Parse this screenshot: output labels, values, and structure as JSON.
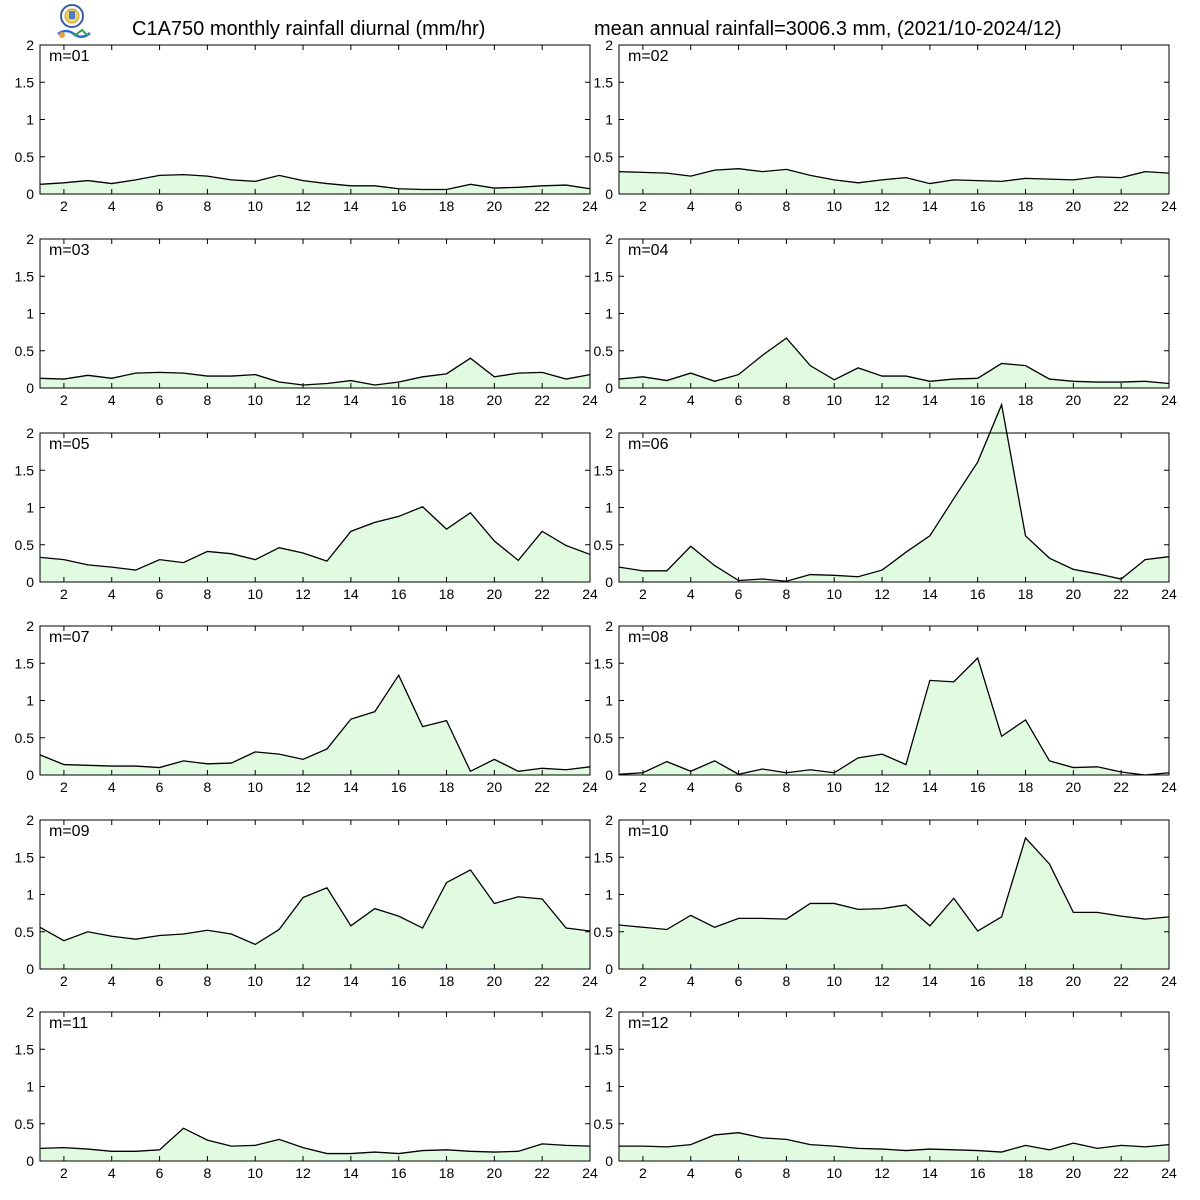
{
  "header": {
    "title_left": "C1A750 monthly rainfall diurnal (mm/hr)",
    "title_right": "mean annual rainfall=3006.3 mm, (2021/10-2024/12)",
    "logo_icon": "lab-logo-icon"
  },
  "style": {
    "fill_color": "#e0fbe0",
    "line_color": "#000000"
  },
  "chart_data": [
    {
      "type": "area",
      "label": "m=01",
      "xlim": [
        1,
        24
      ],
      "ylim": [
        0,
        2
      ],
      "xticks": [
        2,
        4,
        6,
        8,
        10,
        12,
        14,
        16,
        18,
        20,
        22,
        24
      ],
      "yticks": [
        0,
        0.5,
        1,
        1.5,
        2
      ],
      "x": [
        1,
        2,
        3,
        4,
        5,
        6,
        7,
        8,
        9,
        10,
        11,
        12,
        13,
        14,
        15,
        16,
        17,
        18,
        19,
        20,
        21,
        22,
        23,
        24
      ],
      "values": [
        0.13,
        0.15,
        0.18,
        0.14,
        0.19,
        0.25,
        0.26,
        0.24,
        0.19,
        0.17,
        0.25,
        0.18,
        0.14,
        0.11,
        0.11,
        0.07,
        0.06,
        0.06,
        0.13,
        0.08,
        0.09,
        0.11,
        0.12,
        0.07
      ]
    },
    {
      "type": "area",
      "label": "m=02",
      "xlim": [
        1,
        24
      ],
      "ylim": [
        0,
        2
      ],
      "xticks": [
        2,
        4,
        6,
        8,
        10,
        12,
        14,
        16,
        18,
        20,
        22,
        24
      ],
      "yticks": [
        0,
        0.5,
        1,
        1.5,
        2
      ],
      "x": [
        1,
        2,
        3,
        4,
        5,
        6,
        7,
        8,
        9,
        10,
        11,
        12,
        13,
        14,
        15,
        16,
        17,
        18,
        19,
        20,
        21,
        22,
        23,
        24
      ],
      "values": [
        0.3,
        0.29,
        0.28,
        0.24,
        0.32,
        0.34,
        0.3,
        0.33,
        0.25,
        0.19,
        0.15,
        0.19,
        0.22,
        0.14,
        0.19,
        0.18,
        0.17,
        0.21,
        0.2,
        0.19,
        0.23,
        0.22,
        0.3,
        0.28
      ]
    },
    {
      "type": "area",
      "label": "m=03",
      "xlim": [
        1,
        24
      ],
      "ylim": [
        0,
        2
      ],
      "xticks": [
        2,
        4,
        6,
        8,
        10,
        12,
        14,
        16,
        18,
        20,
        22,
        24
      ],
      "yticks": [
        0,
        0.5,
        1,
        1.5,
        2
      ],
      "x": [
        1,
        2,
        3,
        4,
        5,
        6,
        7,
        8,
        9,
        10,
        11,
        12,
        13,
        14,
        15,
        16,
        17,
        18,
        19,
        20,
        21,
        22,
        23,
        24
      ],
      "values": [
        0.13,
        0.12,
        0.17,
        0.13,
        0.2,
        0.21,
        0.2,
        0.16,
        0.16,
        0.18,
        0.08,
        0.04,
        0.06,
        0.1,
        0.04,
        0.08,
        0.15,
        0.19,
        0.4,
        0.15,
        0.2,
        0.21,
        0.12,
        0.18
      ]
    },
    {
      "type": "area",
      "label": "m=04",
      "xlim": [
        1,
        24
      ],
      "ylim": [
        0,
        2
      ],
      "xticks": [
        2,
        4,
        6,
        8,
        10,
        12,
        14,
        16,
        18,
        20,
        22,
        24
      ],
      "yticks": [
        0,
        0.5,
        1,
        1.5,
        2
      ],
      "x": [
        1,
        2,
        3,
        4,
        5,
        6,
        7,
        8,
        9,
        10,
        11,
        12,
        13,
        14,
        15,
        16,
        17,
        18,
        19,
        20,
        21,
        22,
        23,
        24
      ],
      "values": [
        0.12,
        0.15,
        0.1,
        0.2,
        0.09,
        0.18,
        0.44,
        0.67,
        0.3,
        0.11,
        0.27,
        0.16,
        0.16,
        0.09,
        0.12,
        0.13,
        0.33,
        0.3,
        0.12,
        0.09,
        0.08,
        0.08,
        0.09,
        0.06
      ]
    },
    {
      "type": "area",
      "label": "m=05",
      "xlim": [
        1,
        24
      ],
      "ylim": [
        0,
        2
      ],
      "xticks": [
        2,
        4,
        6,
        8,
        10,
        12,
        14,
        16,
        18,
        20,
        22,
        24
      ],
      "yticks": [
        0,
        0.5,
        1,
        1.5,
        2
      ],
      "x": [
        1,
        2,
        3,
        4,
        5,
        6,
        7,
        8,
        9,
        10,
        11,
        12,
        13,
        14,
        15,
        16,
        17,
        18,
        19,
        20,
        21,
        22,
        23,
        24
      ],
      "values": [
        0.33,
        0.3,
        0.23,
        0.2,
        0.16,
        0.3,
        0.26,
        0.41,
        0.38,
        0.3,
        0.46,
        0.39,
        0.28,
        0.68,
        0.8,
        0.88,
        1.01,
        0.71,
        0.93,
        0.55,
        0.29,
        0.68,
        0.49,
        0.37
      ]
    },
    {
      "type": "area",
      "label": "m=06",
      "xlim": [
        1,
        24
      ],
      "ylim": [
        0,
        2
      ],
      "xticks": [
        2,
        4,
        6,
        8,
        10,
        12,
        14,
        16,
        18,
        20,
        22,
        24
      ],
      "yticks": [
        0,
        0.5,
        1,
        1.5,
        2
      ],
      "x": [
        1,
        2,
        3,
        4,
        5,
        6,
        7,
        8,
        9,
        10,
        11,
        12,
        13,
        14,
        15,
        16,
        17,
        18,
        19,
        20,
        21,
        22,
        23,
        24
      ],
      "values": [
        0.2,
        0.15,
        0.15,
        0.48,
        0.22,
        0.02,
        0.04,
        0.01,
        0.1,
        0.09,
        0.07,
        0.16,
        0.4,
        0.62,
        1.12,
        1.61,
        2.38,
        0.62,
        0.32,
        0.17,
        0.11,
        0.04,
        0.3,
        0.34
      ]
    },
    {
      "type": "area",
      "label": "m=07",
      "xlim": [
        1,
        24
      ],
      "ylim": [
        0,
        2
      ],
      "xticks": [
        2,
        4,
        6,
        8,
        10,
        12,
        14,
        16,
        18,
        20,
        22,
        24
      ],
      "yticks": [
        0,
        0.5,
        1,
        1.5,
        2
      ],
      "x": [
        1,
        2,
        3,
        4,
        5,
        6,
        7,
        8,
        9,
        10,
        11,
        12,
        13,
        14,
        15,
        16,
        17,
        18,
        19,
        20,
        21,
        22,
        23,
        24
      ],
      "values": [
        0.27,
        0.14,
        0.13,
        0.12,
        0.12,
        0.1,
        0.19,
        0.15,
        0.16,
        0.31,
        0.28,
        0.21,
        0.35,
        0.75,
        0.85,
        1.34,
        0.65,
        0.73,
        0.05,
        0.21,
        0.05,
        0.09,
        0.07,
        0.11
      ]
    },
    {
      "type": "area",
      "label": "m=08",
      "xlim": [
        1,
        24
      ],
      "ylim": [
        0,
        2
      ],
      "xticks": [
        2,
        4,
        6,
        8,
        10,
        12,
        14,
        16,
        18,
        20,
        22,
        24
      ],
      "yticks": [
        0,
        0.5,
        1,
        1.5,
        2
      ],
      "x": [
        1,
        2,
        3,
        4,
        5,
        6,
        7,
        8,
        9,
        10,
        11,
        12,
        13,
        14,
        15,
        16,
        17,
        18,
        19,
        20,
        21,
        22,
        23,
        24
      ],
      "values": [
        0.01,
        0.03,
        0.18,
        0.05,
        0.19,
        0.01,
        0.08,
        0.03,
        0.07,
        0.03,
        0.23,
        0.28,
        0.14,
        1.27,
        1.25,
        1.57,
        0.52,
        0.74,
        0.19,
        0.1,
        0.11,
        0.04,
        0.0,
        0.03
      ]
    },
    {
      "type": "area",
      "label": "m=09",
      "xlim": [
        1,
        24
      ],
      "ylim": [
        0,
        2
      ],
      "xticks": [
        2,
        4,
        6,
        8,
        10,
        12,
        14,
        16,
        18,
        20,
        22,
        24
      ],
      "yticks": [
        0,
        0.5,
        1,
        1.5,
        2
      ],
      "x": [
        1,
        2,
        3,
        4,
        5,
        6,
        7,
        8,
        9,
        10,
        11,
        12,
        13,
        14,
        15,
        16,
        17,
        18,
        19,
        20,
        21,
        22,
        23,
        24
      ],
      "values": [
        0.56,
        0.38,
        0.5,
        0.44,
        0.4,
        0.45,
        0.47,
        0.52,
        0.47,
        0.33,
        0.53,
        0.96,
        1.09,
        0.58,
        0.81,
        0.71,
        0.55,
        1.16,
        1.33,
        0.88,
        0.97,
        0.94,
        0.55,
        0.51
      ]
    },
    {
      "type": "area",
      "label": "m=10",
      "xlim": [
        1,
        24
      ],
      "ylim": [
        0,
        2
      ],
      "xticks": [
        2,
        4,
        6,
        8,
        10,
        12,
        14,
        16,
        18,
        20,
        22,
        24
      ],
      "yticks": [
        0,
        0.5,
        1,
        1.5,
        2
      ],
      "x": [
        1,
        2,
        3,
        4,
        5,
        6,
        7,
        8,
        9,
        10,
        11,
        12,
        13,
        14,
        15,
        16,
        17,
        18,
        19,
        20,
        21,
        22,
        23,
        24
      ],
      "values": [
        0.59,
        0.56,
        0.53,
        0.72,
        0.56,
        0.68,
        0.68,
        0.67,
        0.88,
        0.88,
        0.8,
        0.81,
        0.86,
        0.58,
        0.95,
        0.51,
        0.7,
        1.76,
        1.41,
        0.76,
        0.76,
        0.71,
        0.67,
        0.7
      ]
    },
    {
      "type": "area",
      "label": "m=11",
      "xlim": [
        1,
        24
      ],
      "ylim": [
        0,
        2
      ],
      "xticks": [
        2,
        4,
        6,
        8,
        10,
        12,
        14,
        16,
        18,
        20,
        22,
        24
      ],
      "yticks": [
        0,
        0.5,
        1,
        1.5,
        2
      ],
      "x": [
        1,
        2,
        3,
        4,
        5,
        6,
        7,
        8,
        9,
        10,
        11,
        12,
        13,
        14,
        15,
        16,
        17,
        18,
        19,
        20,
        21,
        22,
        23,
        24
      ],
      "values": [
        0.17,
        0.18,
        0.16,
        0.13,
        0.13,
        0.15,
        0.44,
        0.28,
        0.2,
        0.21,
        0.29,
        0.18,
        0.1,
        0.1,
        0.12,
        0.1,
        0.14,
        0.15,
        0.13,
        0.12,
        0.13,
        0.23,
        0.21,
        0.2
      ]
    },
    {
      "type": "area",
      "label": "m=12",
      "xlim": [
        1,
        24
      ],
      "ylim": [
        0,
        2
      ],
      "xticks": [
        2,
        4,
        6,
        8,
        10,
        12,
        14,
        16,
        18,
        20,
        22,
        24
      ],
      "yticks": [
        0,
        0.5,
        1,
        1.5,
        2
      ],
      "x": [
        1,
        2,
        3,
        4,
        5,
        6,
        7,
        8,
        9,
        10,
        11,
        12,
        13,
        14,
        15,
        16,
        17,
        18,
        19,
        20,
        21,
        22,
        23,
        24
      ],
      "values": [
        0.2,
        0.2,
        0.19,
        0.22,
        0.35,
        0.38,
        0.31,
        0.29,
        0.22,
        0.2,
        0.17,
        0.16,
        0.14,
        0.16,
        0.15,
        0.14,
        0.12,
        0.21,
        0.15,
        0.24,
        0.17,
        0.21,
        0.19,
        0.22
      ]
    }
  ]
}
